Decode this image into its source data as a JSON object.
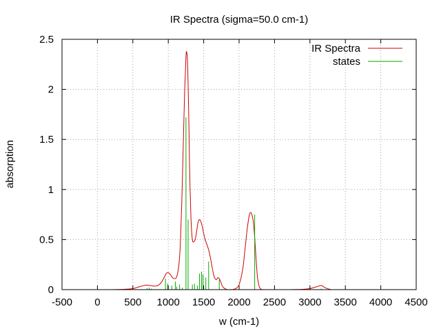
{
  "chart_data": {
    "type": "line",
    "title": "IR Spectra (sigma=50.0 cm-1)",
    "xlabel": "w (cm-1)",
    "ylabel": "absorption",
    "xlim": [
      -500,
      4500
    ],
    "ylim": [
      0,
      2.5
    ],
    "x_ticks": [
      -500,
      0,
      500,
      1000,
      1500,
      2000,
      2500,
      3000,
      3500,
      4000,
      4500
    ],
    "x_tick_labels": [
      "-500",
      "0",
      "500",
      "1000",
      "1500",
      "2000",
      "2500",
      "3000",
      "3500",
      "4000",
      "4500"
    ],
    "y_ticks": [
      0,
      0.5,
      1,
      1.5,
      2,
      2.5
    ],
    "y_tick_labels": [
      "0",
      "0.5",
      "1",
      "1.5",
      "2",
      "2.5"
    ],
    "grid": true,
    "legend_position": "top-right",
    "series": [
      {
        "name": "IR Spectra",
        "kind": "line",
        "color": "#cc0000",
        "x": [
          0,
          200,
          400,
          500,
          550,
          600,
          650,
          700,
          750,
          800,
          850,
          900,
          940,
          970,
          1000,
          1030,
          1060,
          1090,
          1120,
          1150,
          1170,
          1190,
          1210,
          1230,
          1250,
          1260,
          1270,
          1280,
          1290,
          1300,
          1320,
          1340,
          1360,
          1380,
          1400,
          1420,
          1440,
          1460,
          1480,
          1500,
          1520,
          1540,
          1560,
          1580,
          1600,
          1620,
          1640,
          1660,
          1680,
          1700,
          1720,
          1740,
          1760,
          1780,
          1800,
          1820,
          1850,
          1900,
          1950,
          2000,
          2050,
          2080,
          2110,
          2140,
          2160,
          2180,
          2200,
          2220,
          2240,
          2260,
          2280,
          2300,
          2330,
          2360,
          2400,
          2500,
          2700,
          2900,
          3000,
          3050,
          3100,
          3150,
          3180,
          3210,
          3250,
          3300,
          3350,
          4000,
          4200
        ],
        "y": [
          0,
          0,
          0.004,
          0.01,
          0.02,
          0.03,
          0.04,
          0.045,
          0.04,
          0.035,
          0.04,
          0.07,
          0.12,
          0.16,
          0.17,
          0.15,
          0.12,
          0.11,
          0.13,
          0.25,
          0.45,
          0.85,
          1.4,
          1.95,
          2.33,
          2.37,
          2.3,
          2.05,
          1.7,
          1.25,
          0.72,
          0.5,
          0.48,
          0.5,
          0.58,
          0.67,
          0.7,
          0.68,
          0.63,
          0.56,
          0.5,
          0.46,
          0.42,
          0.37,
          0.3,
          0.22,
          0.15,
          0.11,
          0.1,
          0.12,
          0.11,
          0.08,
          0.04,
          0.02,
          0.01,
          0.003,
          0,
          0,
          0.01,
          0.05,
          0.2,
          0.38,
          0.58,
          0.73,
          0.77,
          0.75,
          0.68,
          0.52,
          0.3,
          0.12,
          0.04,
          0.01,
          0,
          0,
          0,
          0,
          0,
          0.003,
          0.01,
          0.02,
          0.03,
          0.04,
          0.035,
          0.02,
          0.01,
          0,
          0,
          0,
          0
        ],
        "line_width": 1
      },
      {
        "name": "states",
        "kind": "impulse",
        "color": "#00aa00",
        "x": [
          700,
          730,
          760,
          960,
          990,
          1050,
          1100,
          1120,
          1160,
          1200,
          1250,
          1280,
          1340,
          1370,
          1410,
          1440,
          1470,
          1490,
          1530,
          1570,
          1720,
          2220,
          3160
        ],
        "y": [
          0.015,
          0.02,
          0.01,
          0.11,
          0.06,
          0.04,
          0.08,
          0.03,
          0.05,
          0.02,
          1.72,
          0.7,
          0.05,
          0.06,
          0.04,
          0.16,
          0.18,
          0.15,
          0.12,
          0.28,
          0.1,
          0.75,
          0.01
        ]
      }
    ]
  }
}
